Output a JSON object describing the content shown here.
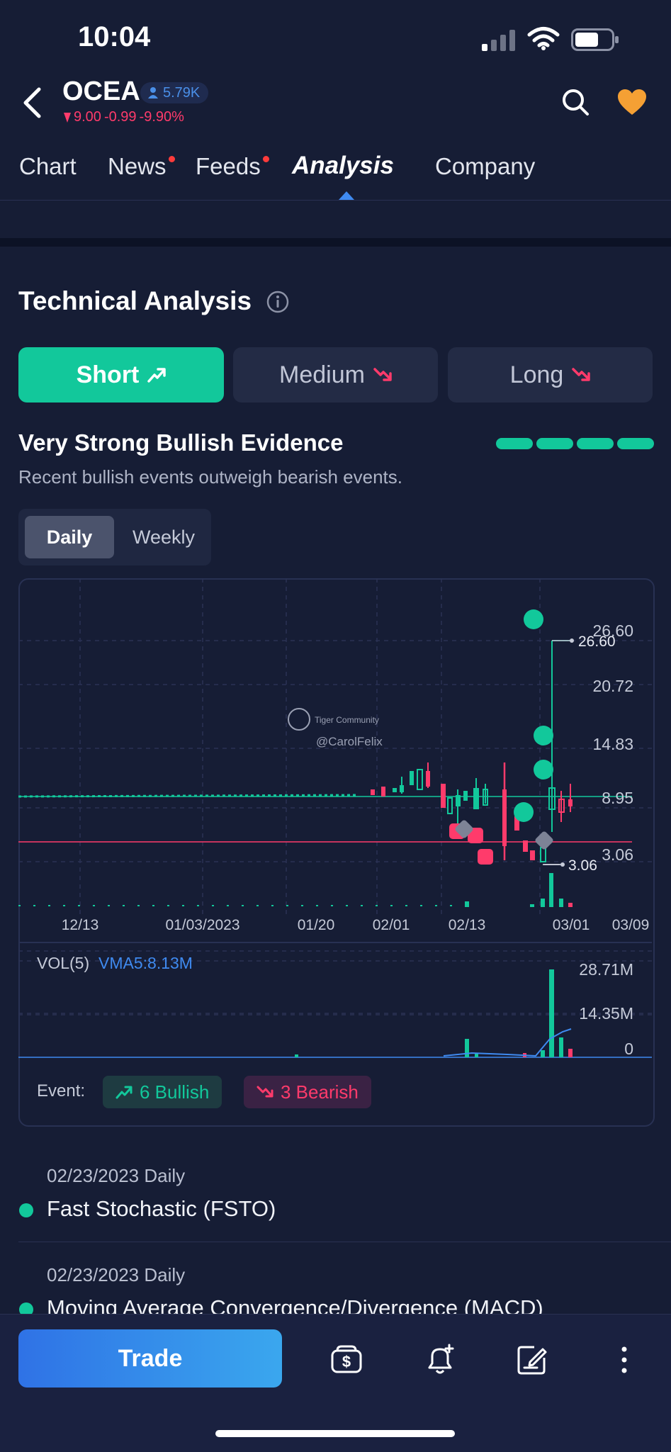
{
  "status_bar": {
    "time": "10:04"
  },
  "header": {
    "ticker": "OCEA",
    "followers": "5.79K",
    "price": "9.00",
    "change": "-0.99",
    "change_pct": "-9.90%"
  },
  "tabs": [
    {
      "label": "Chart",
      "dot": false
    },
    {
      "label": "News",
      "dot": true
    },
    {
      "label": "Feeds",
      "dot": true
    },
    {
      "label": "Analysis",
      "dot": false,
      "active": true
    },
    {
      "label": "Company",
      "dot": false
    }
  ],
  "technical": {
    "title": "Technical Analysis",
    "segments": {
      "short": "Short",
      "medium": "Medium",
      "long": "Long"
    },
    "evidence_title": "Very Strong Bullish Evidence",
    "evidence_sub": "Recent bullish events outweigh bearish events.",
    "strength_bars": 4,
    "period": {
      "daily": "Daily",
      "weekly": "Weekly",
      "selected": "Daily"
    }
  },
  "chart_data": {
    "type": "candlestick",
    "price_axis": [
      "26.60",
      "20.72",
      "14.83",
      "8.95",
      "3.06"
    ],
    "x_ticks": [
      "12/13",
      "01/03/2023",
      "01/20",
      "02/01",
      "02/13",
      "03/01",
      "03/09"
    ],
    "max_marker": "26.60",
    "min_marker": "3.06",
    "watermark_brand": "Tiger Community",
    "watermark_user": "@CarolFelix",
    "vol_label": "VOL(5)",
    "vma_label": "VMA5:8.13M",
    "vol_axis": [
      "28.71M",
      "14.35M",
      "0"
    ]
  },
  "events": {
    "label": "Event:",
    "bullish": "6 Bullish",
    "bearish": "3 Bearish",
    "items": [
      {
        "date": "02/23/2023 Daily",
        "name": "Fast Stochastic (FSTO)"
      },
      {
        "date": "02/23/2023 Daily",
        "name": "Moving Average Convergence/Divergence (MACD)"
      }
    ]
  },
  "bottom": {
    "trade": "Trade"
  },
  "colors": {
    "bull": "#12c89b",
    "bear": "#ff3b6b",
    "accent": "#3f8af0",
    "bg": "#161d35"
  }
}
